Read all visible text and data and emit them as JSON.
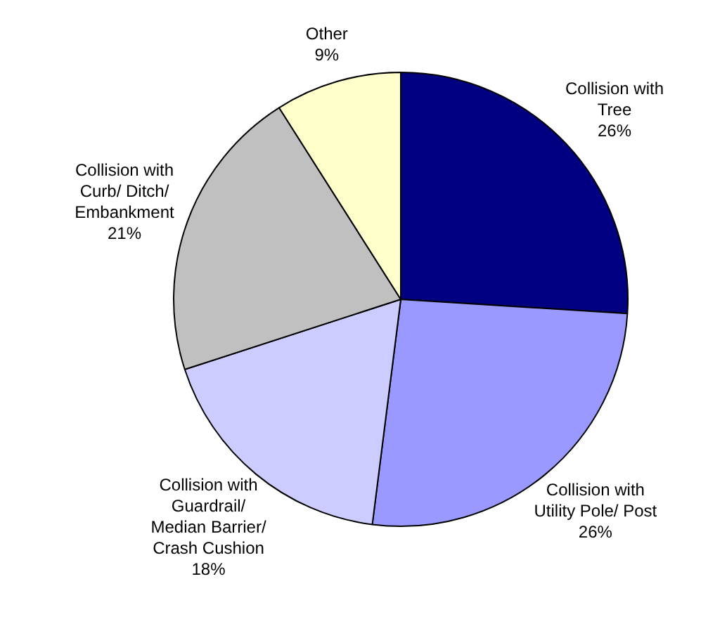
{
  "chart_data": {
    "type": "pie",
    "categories": [
      "Collision with Tree",
      "Collision with Utility Pole/ Post",
      "Collision with Guardrail/ Median Barrier/ Crash Cushion",
      "Collision with Curb/ Ditch/ Embankment",
      "Other"
    ],
    "values": [
      26,
      26,
      18,
      21,
      9
    ],
    "value_labels": [
      "26%",
      "26%",
      "18%",
      "21%",
      "9%"
    ],
    "colors": [
      "#000080",
      "#9999ff",
      "#ccccff",
      "#c0c0c0",
      "#ffffcc"
    ]
  }
}
